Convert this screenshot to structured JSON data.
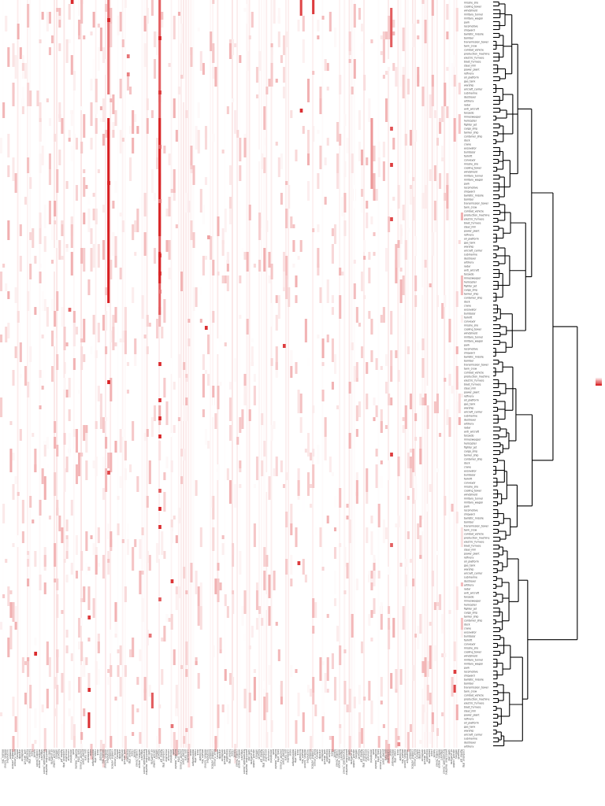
{
  "chart_data": {
    "type": "heatmap",
    "title": "",
    "xlabel": "",
    "ylabel": "",
    "colormap": [
      "#ffffff",
      "#d7191c"
    ],
    "value_range": [
      0,
      1
    ],
    "dendrogram": "rows",
    "legend_label": "",
    "rows": [
      "missile_silo",
      "cooling_tower",
      "windshield",
      "military_tunnel",
      "military_wagon",
      "park",
      "locomotive",
      "shipyard",
      "ballistic_missile",
      "bomber",
      "transmission_tower",
      "tank_crew",
      "combat_vehicle",
      "production_machine",
      "electric_furnace",
      "blast_furnace",
      "steel_mill",
      "power_plant",
      "refinery",
      "oil_platform",
      "gas_tank",
      "warship",
      "aircraft_carrier",
      "submarine",
      "destroyer",
      "artillery",
      "radar",
      "anti_aircraft",
      "torpedo",
      "minesweeper",
      "helicopter",
      "fighter_jet",
      "cargo_ship",
      "tanker_ship",
      "container_ship",
      "dock",
      "crane",
      "excavator",
      "bulldozer",
      "forklift",
      "conveyor"
    ],
    "columns": 190,
    "cells": [
      {
        "r": 0,
        "c": 29,
        "v": 0.92
      },
      {
        "r": 0,
        "c": 44,
        "v": 0.95
      },
      {
        "r": 0,
        "c": 65,
        "v": 0.97
      },
      {
        "r": 1,
        "c": 52,
        "v": 0.6
      },
      {
        "r": 2,
        "c": 52,
        "v": 0.55
      },
      {
        "r": 3,
        "c": 65,
        "v": 0.88
      },
      {
        "r": 4,
        "c": 123,
        "v": 0.9
      },
      {
        "r": 4,
        "c": 160,
        "v": 0.75
      },
      {
        "r": 5,
        "c": 65,
        "v": 0.7
      },
      {
        "r": 6,
        "c": 160,
        "v": 0.85
      },
      {
        "r": 7,
        "c": 44,
        "v": 0.95
      },
      {
        "r": 8,
        "c": 65,
        "v": 0.6
      },
      {
        "r": 9,
        "c": 160,
        "v": 0.8
      },
      {
        "r": 10,
        "c": 85,
        "v": 0.4
      },
      {
        "r": 11,
        "c": 65,
        "v": 0.95
      },
      {
        "r": 12,
        "c": 65,
        "v": 0.95
      },
      {
        "r": 13,
        "c": 65,
        "v": 0.6
      },
      {
        "r": 14,
        "c": 28,
        "v": 0.65
      },
      {
        "r": 15,
        "c": 84,
        "v": 0.9
      },
      {
        "r": 15,
        "c": 116,
        "v": 0.85
      },
      {
        "r": 16,
        "c": 65,
        "v": 0.92
      },
      {
        "r": 17,
        "c": 44,
        "v": 0.96
      },
      {
        "r": 18,
        "c": 65,
        "v": 0.9
      },
      {
        "r": 19,
        "c": 65,
        "v": 0.94
      },
      {
        "r": 20,
        "c": 65,
        "v": 0.95
      },
      {
        "r": 21,
        "c": 160,
        "v": 0.85
      },
      {
        "r": 22,
        "c": 44,
        "v": 0.8
      },
      {
        "r": 23,
        "c": 65,
        "v": 0.7
      },
      {
        "r": 24,
        "c": 65,
        "v": 0.96
      },
      {
        "r": 25,
        "c": 65,
        "v": 0.9
      },
      {
        "r": 26,
        "c": 160,
        "v": 0.7
      },
      {
        "r": 27,
        "c": 122,
        "v": 0.85
      },
      {
        "r": 28,
        "c": 70,
        "v": 0.88
      },
      {
        "r": 29,
        "c": 65,
        "v": 0.7
      },
      {
        "r": 30,
        "c": 36,
        "v": 0.85
      },
      {
        "r": 31,
        "c": 61,
        "v": 0.6
      },
      {
        "r": 32,
        "c": 14,
        "v": 0.92
      },
      {
        "r": 33,
        "c": 186,
        "v": 0.85
      },
      {
        "r": 34,
        "c": 36,
        "v": 0.9
      },
      {
        "r": 35,
        "c": 190,
        "v": 0.0
      },
      {
        "r": 36,
        "c": 70,
        "v": 0.6
      },
      {
        "r": 37,
        "c": 163,
        "v": 0.5
      }
    ]
  }
}
